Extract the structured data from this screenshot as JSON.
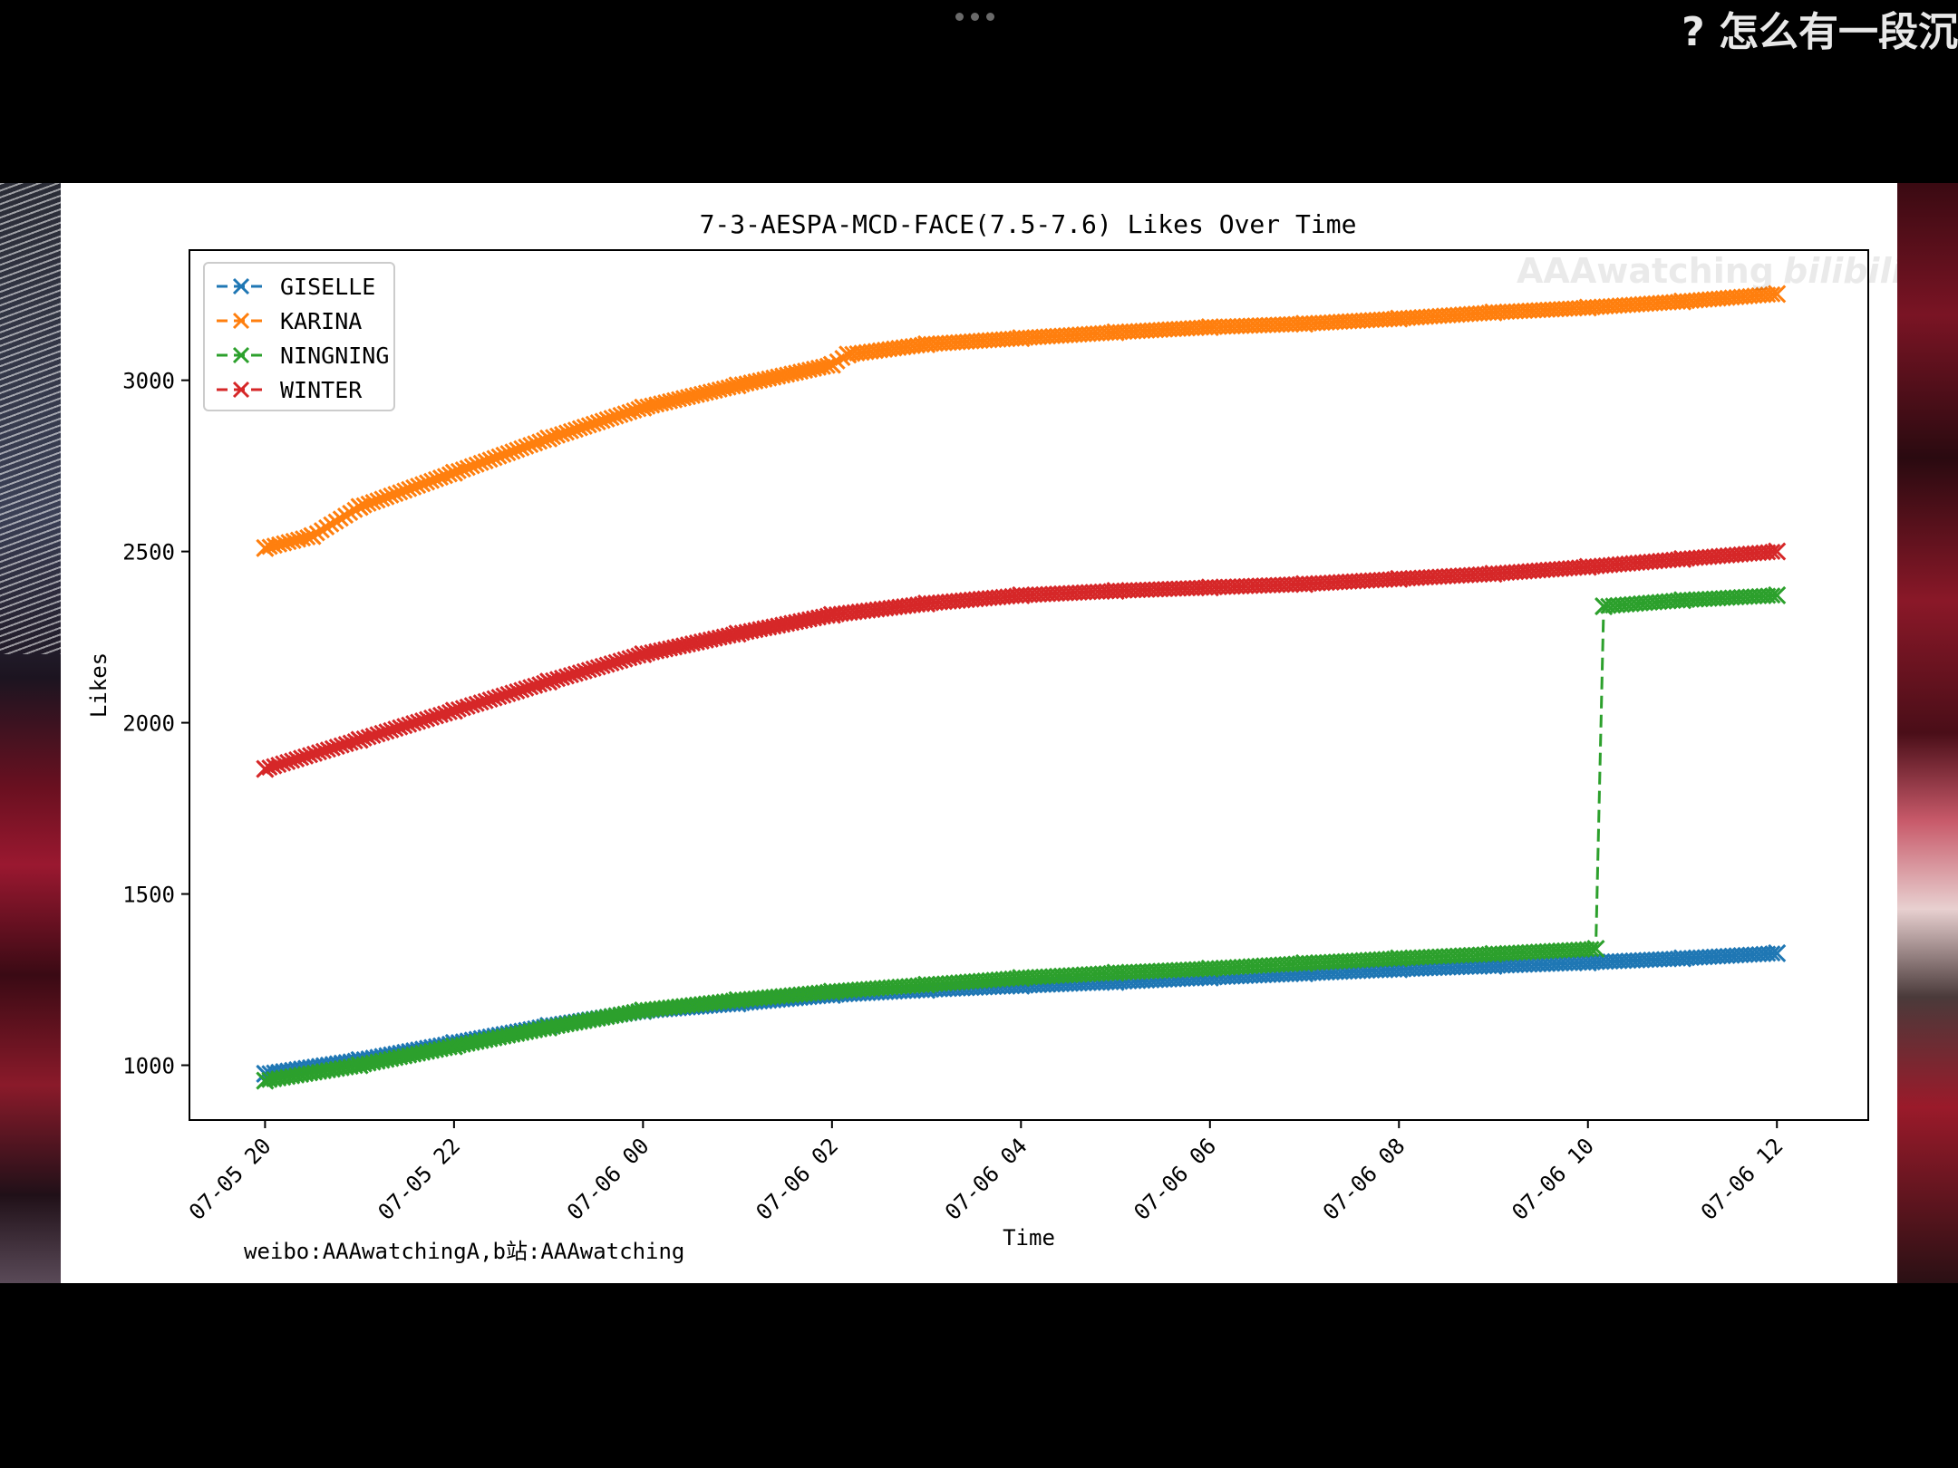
{
  "topbar": {
    "menu_icon": "more-dots-icon",
    "caption": "? 怎么有一段沉"
  },
  "watermark": {
    "text": "AAAwatching",
    "logo": "bilibili"
  },
  "credit": "weibo:AAAwatchingA,b站:AAAwatching",
  "chart_data": {
    "type": "line",
    "title": "7-3-AESPA-MCD-FACE(7.5-7.6) Likes Over Time",
    "xlabel": "Time",
    "ylabel": "Likes",
    "x_ticks": [
      "07-05 20",
      "07-05 22",
      "07-06 00",
      "07-06 02",
      "07-06 04",
      "07-06 06",
      "07-06 08",
      "07-06 10",
      "07-06 12"
    ],
    "y_ticks": [
      1000,
      1500,
      2000,
      2500,
      3000
    ],
    "xlim": [
      "07-05 19:12",
      "07-06 12:58"
    ],
    "ylim": [
      840,
      3380
    ],
    "grid": false,
    "legend_position": "top-left",
    "line_style": "dashed",
    "marker": "x",
    "series": [
      {
        "name": "GISELLE",
        "color": "#1f77b4",
        "points": [
          [
            "07-05 20:00",
            975
          ],
          [
            "07-05 21:00",
            1015
          ],
          [
            "07-05 22:00",
            1065
          ],
          [
            "07-05 23:00",
            1115
          ],
          [
            "07-06 00:00",
            1158
          ],
          [
            "07-06 01:00",
            1180
          ],
          [
            "07-06 02:00",
            1205
          ],
          [
            "07-06 03:00",
            1220
          ],
          [
            "07-06 04:00",
            1232
          ],
          [
            "07-06 05:00",
            1243
          ],
          [
            "07-06 06:00",
            1256
          ],
          [
            "07-06 07:00",
            1268
          ],
          [
            "07-06 08:00",
            1280
          ],
          [
            "07-06 09:00",
            1290
          ],
          [
            "07-06 10:00",
            1300
          ],
          [
            "07-06 11:00",
            1312
          ],
          [
            "07-06 12:00",
            1327
          ]
        ]
      },
      {
        "name": "KARINA",
        "color": "#ff7f0e",
        "points": [
          [
            "07-05 20:00",
            2510
          ],
          [
            "07-05 20:30",
            2545
          ],
          [
            "07-05 21:00",
            2630
          ],
          [
            "07-05 22:00",
            2730
          ],
          [
            "07-05 23:00",
            2830
          ],
          [
            "07-06 00:00",
            2920
          ],
          [
            "07-06 01:00",
            2985
          ],
          [
            "07-06 02:00",
            3045
          ],
          [
            "07-06 02:10",
            3075
          ],
          [
            "07-06 03:00",
            3105
          ],
          [
            "07-06 04:00",
            3123
          ],
          [
            "07-06 05:00",
            3140
          ],
          [
            "07-06 06:00",
            3155
          ],
          [
            "07-06 07:00",
            3165
          ],
          [
            "07-06 08:00",
            3180
          ],
          [
            "07-06 09:00",
            3198
          ],
          [
            "07-06 10:00",
            3212
          ],
          [
            "07-06 11:00",
            3230
          ],
          [
            "07-06 12:00",
            3252
          ]
        ]
      },
      {
        "name": "NINGNING",
        "color": "#2ca02c",
        "points": [
          [
            "07-05 20:00",
            955
          ],
          [
            "07-05 21:00",
            1000
          ],
          [
            "07-05 22:00",
            1055
          ],
          [
            "07-05 23:00",
            1110
          ],
          [
            "07-06 00:00",
            1160
          ],
          [
            "07-06 01:00",
            1190
          ],
          [
            "07-06 02:00",
            1215
          ],
          [
            "07-06 03:00",
            1235
          ],
          [
            "07-06 04:00",
            1255
          ],
          [
            "07-06 05:00",
            1270
          ],
          [
            "07-06 06:00",
            1282
          ],
          [
            "07-06 07:00",
            1298
          ],
          [
            "07-06 08:00",
            1312
          ],
          [
            "07-06 09:00",
            1325
          ],
          [
            "07-06 10:05",
            1340
          ],
          [
            "07-06 10:10",
            2340
          ],
          [
            "07-06 11:00",
            2358
          ],
          [
            "07-06 12:00",
            2372
          ]
        ]
      },
      {
        "name": "WINTER",
        "color": "#d62728",
        "points": [
          [
            "07-05 20:00",
            1865
          ],
          [
            "07-05 21:00",
            1950
          ],
          [
            "07-05 22:00",
            2035
          ],
          [
            "07-05 23:00",
            2120
          ],
          [
            "07-06 00:00",
            2200
          ],
          [
            "07-06 01:00",
            2260
          ],
          [
            "07-06 02:00",
            2315
          ],
          [
            "07-06 03:00",
            2348
          ],
          [
            "07-06 04:00",
            2372
          ],
          [
            "07-06 05:00",
            2385
          ],
          [
            "07-06 06:00",
            2395
          ],
          [
            "07-06 07:00",
            2405
          ],
          [
            "07-06 08:00",
            2420
          ],
          [
            "07-06 09:00",
            2435
          ],
          [
            "07-06 10:00",
            2455
          ],
          [
            "07-06 11:00",
            2478
          ],
          [
            "07-06 12:00",
            2500
          ]
        ]
      }
    ]
  }
}
